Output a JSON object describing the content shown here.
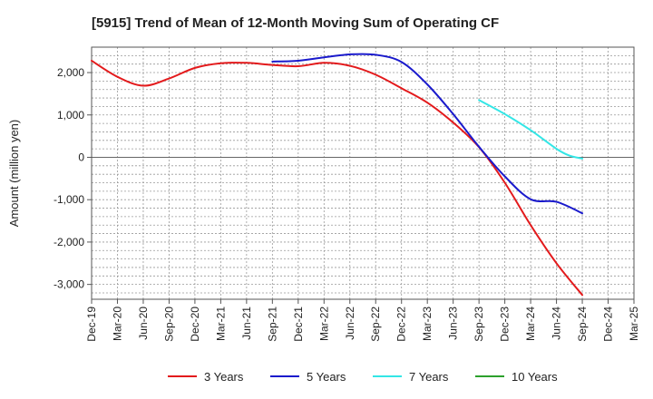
{
  "chart_data": {
    "type": "line",
    "title": "[5915]  Trend of Mean of 12-Month Moving Sum of Operating CF",
    "xlabel": "",
    "ylabel": "Amount (million yen)",
    "ylim": [
      -3350,
      2600
    ],
    "yticks": [
      2000,
      1000,
      0,
      -1000,
      -2000,
      -3000
    ],
    "ytick_labels": [
      "2,000",
      "1,000",
      "0",
      "-1,000",
      "-2,000",
      "-3,000"
    ],
    "x_categories": [
      "Dec-19",
      "Mar-20",
      "Jun-20",
      "Sep-20",
      "Dec-20",
      "Mar-21",
      "Jun-21",
      "Sep-21",
      "Dec-21",
      "Mar-22",
      "Jun-22",
      "Sep-22",
      "Dec-22",
      "Mar-23",
      "Jun-23",
      "Sep-23",
      "Dec-23",
      "Mar-24",
      "Jun-24",
      "Sep-24",
      "Dec-24",
      "Mar-25"
    ],
    "grid": true,
    "legend_position": "bottom",
    "series": [
      {
        "name": "3 Years",
        "color": "#e31a1c",
        "points": [
          [
            0,
            2280
          ],
          [
            1,
            1900
          ],
          [
            2,
            1690
          ],
          [
            3,
            1860
          ],
          [
            4,
            2110
          ],
          [
            5,
            2220
          ],
          [
            6,
            2230
          ],
          [
            7,
            2180
          ],
          [
            8,
            2150
          ],
          [
            9,
            2230
          ],
          [
            10,
            2160
          ],
          [
            11,
            1950
          ],
          [
            12,
            1630
          ],
          [
            13,
            1290
          ],
          [
            14,
            820
          ],
          [
            15,
            240
          ],
          [
            16,
            -600
          ],
          [
            17,
            -1600
          ],
          [
            18,
            -2500
          ],
          [
            19,
            -3250
          ]
        ]
      },
      {
        "name": "5 Years",
        "color": "#1a1acc",
        "points": [
          [
            7,
            2260
          ],
          [
            8,
            2280
          ],
          [
            9,
            2360
          ],
          [
            10,
            2430
          ],
          [
            11,
            2420
          ],
          [
            12,
            2250
          ],
          [
            13,
            1720
          ],
          [
            14,
            1020
          ],
          [
            15,
            250
          ],
          [
            16,
            -450
          ],
          [
            17,
            -990
          ],
          [
            18,
            -1050
          ],
          [
            19,
            -1320
          ]
        ]
      },
      {
        "name": "7 Years",
        "color": "#33e6e6",
        "points": [
          [
            15,
            1350
          ],
          [
            16,
            1020
          ],
          [
            17,
            640
          ],
          [
            18,
            200
          ],
          [
            18.5,
            40
          ],
          [
            19,
            -30
          ]
        ]
      },
      {
        "name": "10 Years",
        "color": "#2ca02c",
        "points": []
      }
    ]
  }
}
